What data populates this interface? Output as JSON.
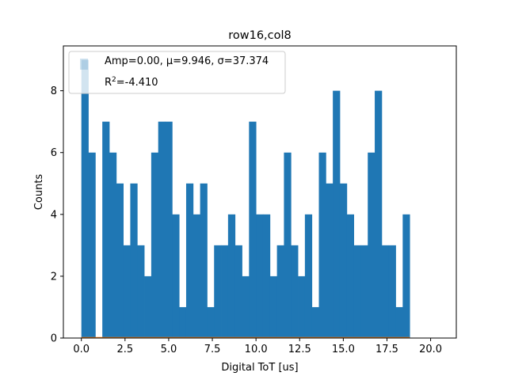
{
  "chart_data": {
    "type": "bar",
    "title": "row16,col8",
    "xlabel": "Digital ToT [us]",
    "ylabel": "Counts",
    "xlim": [
      -1.03,
      21.47
    ],
    "ylim": [
      0,
      9.45
    ],
    "bin_width": 0.4,
    "bin_start": 0.0,
    "values": [
      9,
      6,
      0,
      7,
      6,
      5,
      3,
      5,
      3,
      2,
      6,
      7,
      7,
      4,
      1,
      5,
      4,
      5,
      1,
      3,
      3,
      4,
      3,
      2,
      7,
      4,
      4,
      2,
      3,
      6,
      3,
      2,
      4,
      1,
      6,
      5,
      8,
      5,
      4,
      3,
      3,
      6,
      8,
      3,
      3,
      1,
      4
    ],
    "xticks": [
      0.0,
      2.5,
      5.0,
      7.5,
      10.0,
      12.5,
      15.0,
      17.5,
      20.0
    ],
    "xtick_labels": [
      "0.0",
      "2.5",
      "5.0",
      "7.5",
      "10.0",
      "12.5",
      "15.0",
      "17.5",
      "20.0"
    ],
    "yticks": [
      0,
      2,
      4,
      6,
      8
    ],
    "ytick_labels": [
      "0",
      "2",
      "4",
      "6",
      "8"
    ],
    "fit_curve": {
      "color": "#ff7f0e",
      "amplitude": 0.0
    },
    "bar_color": "#1f77b4",
    "legend": {
      "placement": "upper-left",
      "line1": "Amp=0.00, μ=9.946, σ=37.374",
      "line2_prefix": "R",
      "line2_sup": "2",
      "line2_suffix": "=-4.410"
    }
  }
}
